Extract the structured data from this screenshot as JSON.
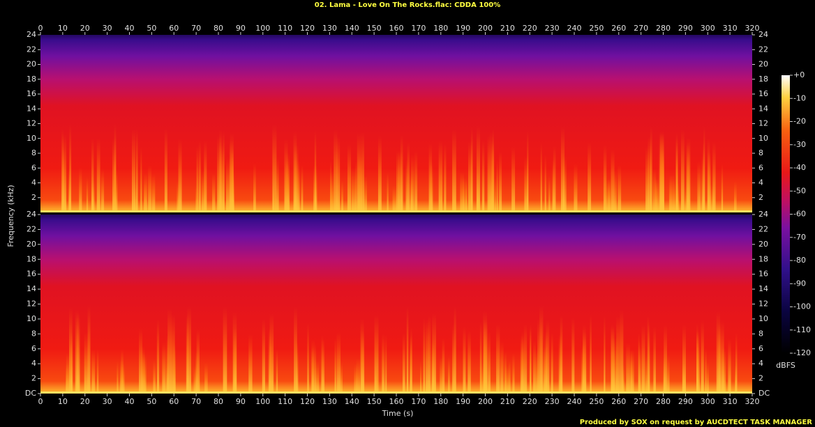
{
  "chart_data": {
    "type": "spectrogram",
    "title": "02. Lama - Love On The Rocks.flac: CDDA 100%",
    "xlabel": "Time (s)",
    "ylabel": "Frequency (kHz)",
    "xlim": [
      0,
      320
    ],
    "xticks": [
      0,
      10,
      20,
      30,
      40,
      50,
      60,
      70,
      80,
      90,
      100,
      110,
      120,
      130,
      140,
      150,
      160,
      170,
      180,
      190,
      200,
      210,
      220,
      230,
      240,
      250,
      260,
      270,
      280,
      290,
      300,
      310,
      320
    ],
    "ylim": [
      0,
      24
    ],
    "channels": [
      {
        "yticks": [
          2,
          4,
          6,
          8,
          10,
          12,
          14,
          16,
          18,
          20,
          22,
          24
        ]
      },
      {
        "yticks": [
          {
            "value": 0,
            "label": "DC"
          },
          2,
          4,
          6,
          8,
          10,
          12,
          14,
          16,
          18,
          20,
          22,
          24
        ]
      }
    ],
    "colorbar": {
      "label": "dBFS",
      "lim": [
        -120,
        0
      ],
      "ticks": [
        {
          "value": 0,
          "label": "+0"
        },
        -10,
        -20,
        -30,
        -40,
        -50,
        -60,
        -70,
        -80,
        -90,
        -100,
        -110,
        -120
      ]
    },
    "footer": "Produced by SOX on request by AUCDTECT TASK MANAGER"
  }
}
